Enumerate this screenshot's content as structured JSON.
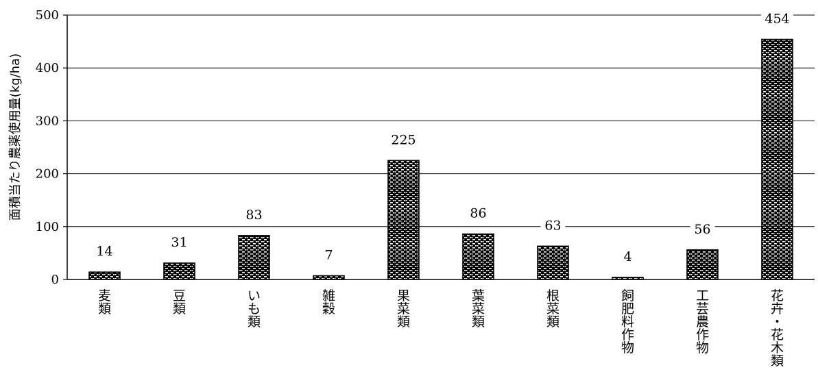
{
  "chart_data": {
    "type": "bar",
    "title": "",
    "xlabel": "",
    "ylabel": "面積当たり農薬使用量(kg/ha)",
    "ylim": [
      0,
      500
    ],
    "yticks": [
      0,
      100,
      200,
      300,
      400,
      500
    ],
    "grid": true,
    "legend": "none",
    "categories": [
      "麦類",
      "豆類",
      "いも類",
      "雑穀",
      "果菜類",
      "葉菜類",
      "根菜類",
      "飼肥料作物",
      "工芸農作物",
      "花卉・花木類"
    ],
    "values": [
      14,
      31,
      83,
      7,
      225,
      86,
      63,
      4,
      56,
      454
    ],
    "data_labels": [
      "14",
      "31",
      "83",
      "7",
      "225",
      "86",
      "63",
      "4",
      "56",
      "454"
    ],
    "colors": {
      "bar_fill": "#ffffff",
      "bar_pattern": "#000000",
      "axis": "#000000",
      "grid": "#000000"
    }
  }
}
